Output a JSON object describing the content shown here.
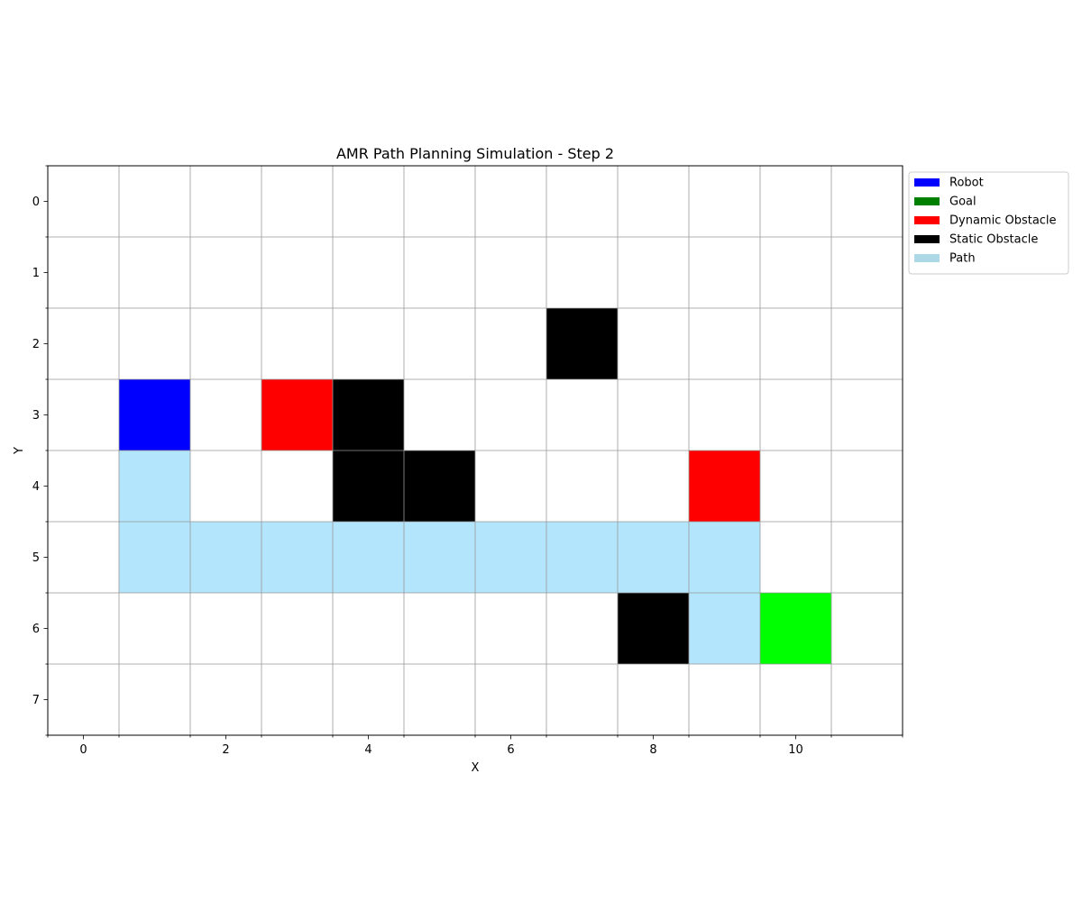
{
  "chart_data": {
    "type": "heatmap",
    "title": "AMR Path Planning Simulation - Step 2",
    "xlabel": "X",
    "ylabel": "Y",
    "grid_size": {
      "cols": 12,
      "rows": 8
    },
    "xlim": [
      -0.5,
      11.5
    ],
    "ylim": [
      7.5,
      -0.5
    ],
    "y_inverted": true,
    "grid": true,
    "x_ticks": [
      0,
      2,
      4,
      6,
      8,
      10
    ],
    "y_ticks": [
      0,
      1,
      2,
      3,
      4,
      5,
      6,
      7
    ],
    "legend": {
      "placement": "outside-upper-right",
      "entries": [
        {
          "label": "Robot",
          "color": "#0000ff"
        },
        {
          "label": "Goal",
          "color": "#008000"
        },
        {
          "label": "Dynamic Obstacle",
          "color": "#ff0000"
        },
        {
          "label": "Static Obstacle",
          "color": "#000000"
        },
        {
          "label": "Path",
          "color": "#add8e6"
        }
      ]
    },
    "cells": {
      "path": [
        [
          1,
          4
        ],
        [
          1,
          5
        ],
        [
          2,
          5
        ],
        [
          3,
          5
        ],
        [
          4,
          5
        ],
        [
          5,
          5
        ],
        [
          6,
          5
        ],
        [
          7,
          5
        ],
        [
          8,
          5
        ],
        [
          9,
          5
        ],
        [
          9,
          6
        ]
      ],
      "static_obstacles": [
        [
          7,
          2
        ],
        [
          4,
          3
        ],
        [
          4,
          4
        ],
        [
          5,
          4
        ],
        [
          8,
          6
        ]
      ],
      "dynamic_obstacles": [
        [
          3,
          3
        ],
        [
          9,
          4
        ]
      ],
      "robot": [
        [
          1,
          3
        ]
      ],
      "goal": [
        [
          10,
          6
        ]
      ]
    },
    "cell_colors": {
      "path": "#b3e5fc",
      "static_obstacles": "#000000",
      "dynamic_obstacles": "#ff0000",
      "robot": "#0000ff",
      "goal": "#00ff00",
      "grid_line": "#999999"
    }
  }
}
